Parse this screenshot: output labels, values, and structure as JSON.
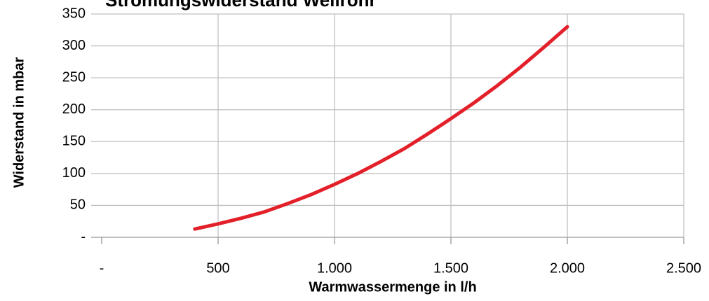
{
  "chart_data": {
    "type": "line",
    "title": "Strömungswiderstand Wellrohr",
    "x_label": "Warmwassermenge in l/h",
    "y_label": "Widerstand in mbar",
    "x": [
      400,
      500,
      600,
      700,
      800,
      900,
      1000,
      1100,
      1200,
      1300,
      1400,
      1500,
      1600,
      1700,
      1800,
      1900,
      2000
    ],
    "values": [
      13,
      21,
      30,
      40,
      53,
      67,
      83,
      100,
      119,
      139,
      162,
      186,
      211,
      238,
      267,
      298,
      330
    ],
    "color": "#e3202a",
    "xlim": [
      0,
      2500
    ],
    "xticks": [
      {
        "value": 0,
        "label": "-"
      },
      500,
      {
        "value": 1000,
        "label": "1.000"
      },
      {
        "value": 1500,
        "label": "1.500"
      },
      {
        "value": 2000,
        "label": "2.000"
      },
      {
        "value": 2500,
        "label": "2.500"
      }
    ],
    "ylim": [
      0,
      350
    ],
    "yticks": [
      {
        "value": 0,
        "label": "-"
      },
      50,
      100,
      150,
      200,
      250,
      300,
      350
    ],
    "grid": true
  }
}
